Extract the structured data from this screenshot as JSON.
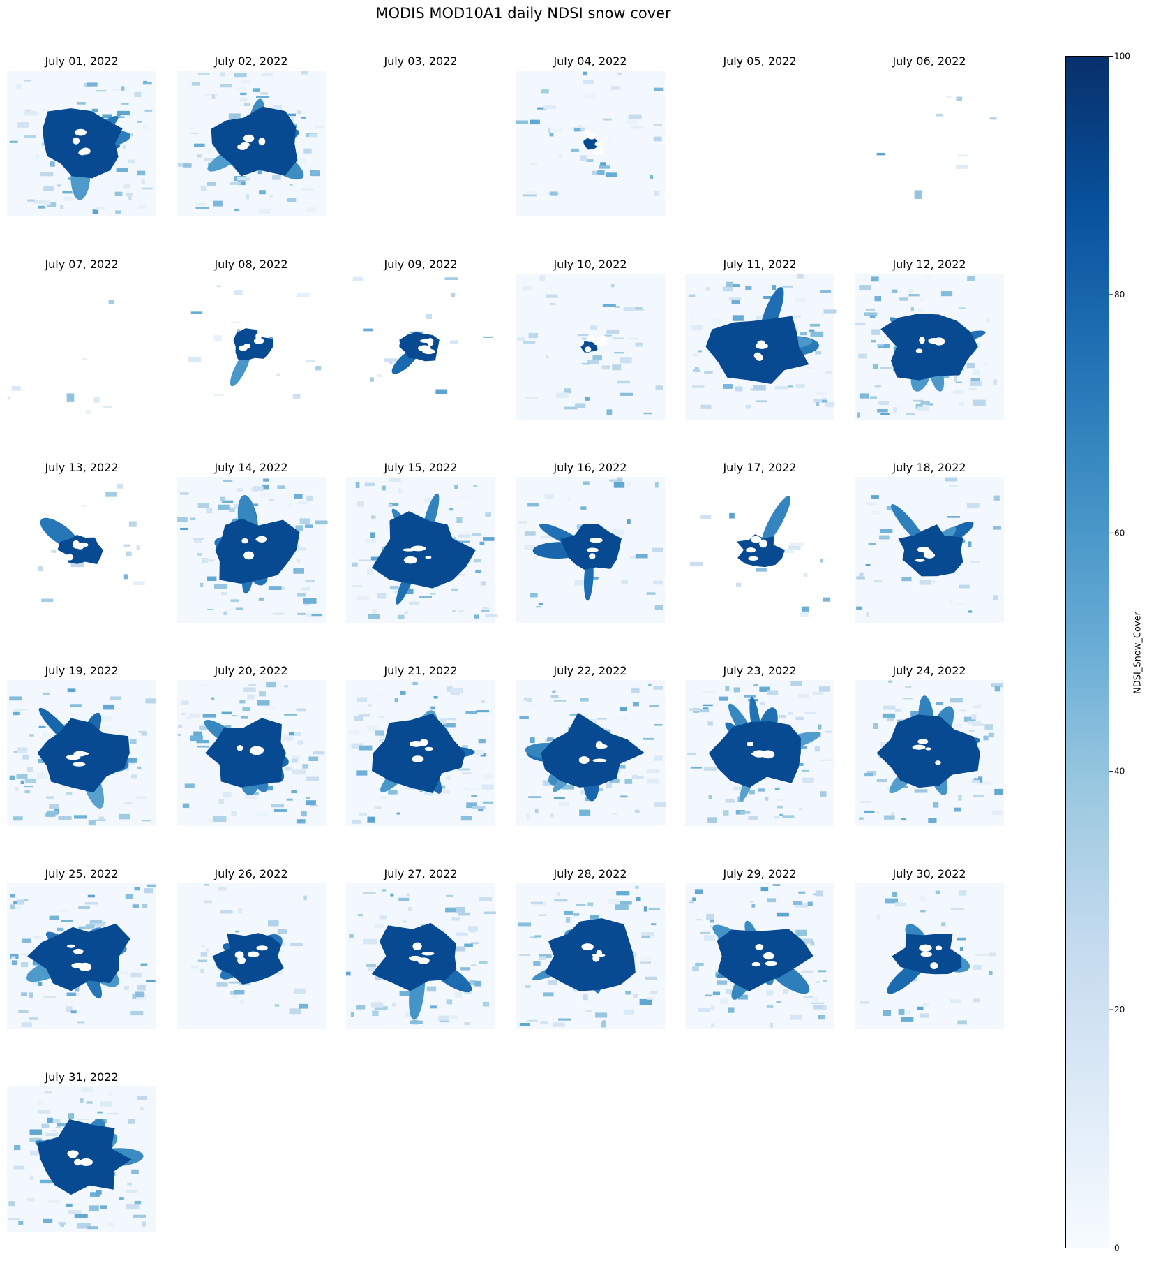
{
  "title": "MODIS MOD10A1 daily NDSI snow cover",
  "colors": {
    "cmap": "Blues",
    "low": "#f7fbff",
    "mid": "#6baed6",
    "high": "#08306b"
  },
  "colorbar": {
    "label": "NDSI_Snow_Cover",
    "min": 0,
    "max": 100,
    "ticks": [
      "0",
      "20",
      "40",
      "60",
      "80",
      "100"
    ]
  },
  "chart_data": {
    "type": "heatmap",
    "variable": "NDSI_Snow_Cover",
    "range": [
      0,
      100
    ],
    "panels": [
      {
        "title": "July 01, 2022",
        "snow": "large"
      },
      {
        "title": "July 02, 2022",
        "snow": "large"
      },
      {
        "title": "July 03, 2022",
        "snow": "none"
      },
      {
        "title": "July 04, 2022",
        "snow": "sparse"
      },
      {
        "title": "July 05, 2022",
        "snow": "none"
      },
      {
        "title": "July 06, 2022",
        "snow": "trace"
      },
      {
        "title": "July 07, 2022",
        "snow": "trace"
      },
      {
        "title": "July 08, 2022",
        "snow": "small"
      },
      {
        "title": "July 09, 2022",
        "snow": "small"
      },
      {
        "title": "July 10, 2022",
        "snow": "sparse"
      },
      {
        "title": "July 11, 2022",
        "snow": "large"
      },
      {
        "title": "July 12, 2022",
        "snow": "large"
      },
      {
        "title": "July 13, 2022",
        "snow": "small"
      },
      {
        "title": "July 14, 2022",
        "snow": "large"
      },
      {
        "title": "July 15, 2022",
        "snow": "large"
      },
      {
        "title": "July 16, 2022",
        "snow": "medium"
      },
      {
        "title": "July 17, 2022",
        "snow": "small"
      },
      {
        "title": "July 18, 2022",
        "snow": "medium"
      },
      {
        "title": "July 19, 2022",
        "snow": "large"
      },
      {
        "title": "July 20, 2022",
        "snow": "large"
      },
      {
        "title": "July 21, 2022",
        "snow": "large"
      },
      {
        "title": "July 22, 2022",
        "snow": "large"
      },
      {
        "title": "July 23, 2022",
        "snow": "large"
      },
      {
        "title": "July 24, 2022",
        "snow": "large"
      },
      {
        "title": "July 25, 2022",
        "snow": "large"
      },
      {
        "title": "July 26, 2022",
        "snow": "medium"
      },
      {
        "title": "July 27, 2022",
        "snow": "large"
      },
      {
        "title": "July 28, 2022",
        "snow": "large"
      },
      {
        "title": "July 29, 2022",
        "snow": "large"
      },
      {
        "title": "July 30, 2022",
        "snow": "medium"
      },
      {
        "title": "July 31, 2022",
        "snow": "large"
      }
    ]
  }
}
